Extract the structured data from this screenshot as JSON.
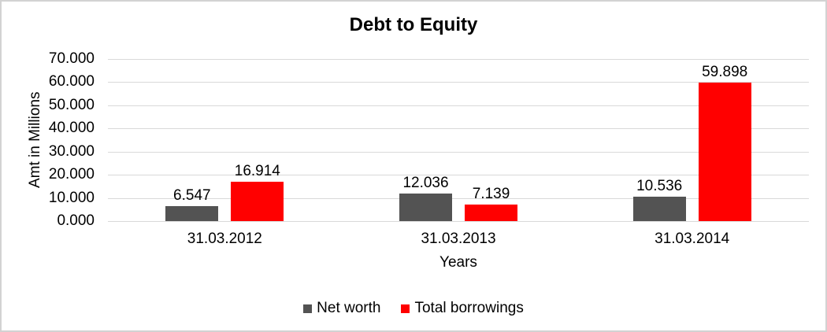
{
  "chart_data": {
    "type": "bar",
    "title": "Debt to Equity",
    "xlabel": "Years",
    "ylabel": "Amt in Millions",
    "categories": [
      "31.03.2012",
      "31.03.2013",
      "31.03.2014"
    ],
    "series": [
      {
        "name": "Net worth",
        "color": "#535353",
        "values": [
          6.547,
          12.036,
          10.536
        ]
      },
      {
        "name": "Total borrowings",
        "color": "#FF0000",
        "values": [
          16.914,
          7.139,
          59.898
        ]
      }
    ],
    "ylim": [
      0,
      70
    ],
    "ytick_step": 10,
    "ytick_decimals": 3,
    "value_label_decimals": 3,
    "grid": true,
    "legend_position": "bottom",
    "colors": {
      "gridline": "#D9D9D9",
      "text": "#000000",
      "frame_border": "#D2D2D2",
      "background": "#FFFFFF"
    }
  }
}
